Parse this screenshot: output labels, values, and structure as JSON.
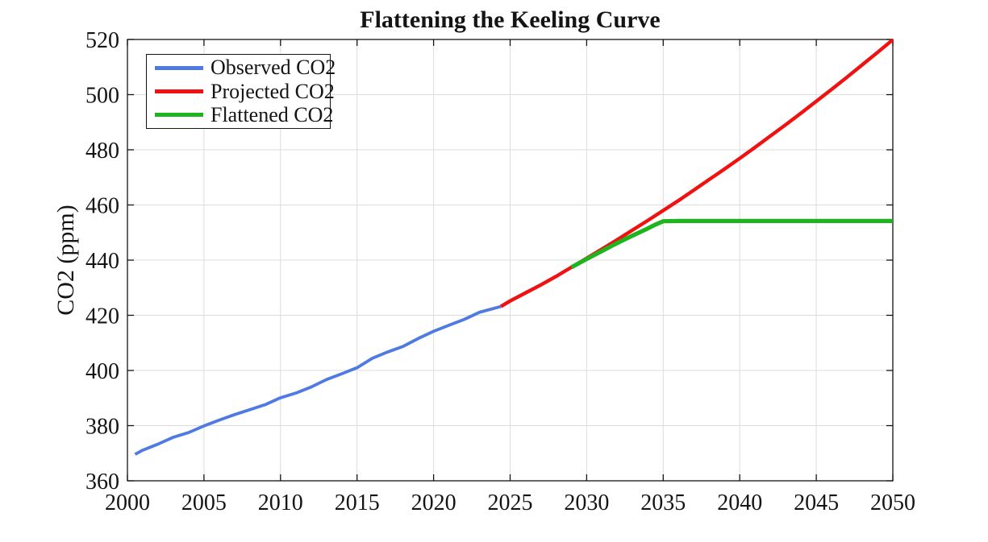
{
  "legend": {
    "items": [
      {
        "label": "Observed CO2"
      },
      {
        "label": "Projected CO2"
      },
      {
        "label": "Flattened CO2"
      }
    ]
  },
  "chart_data": {
    "type": "line",
    "title": "Flattening the Keeling Curve",
    "xlabel": "",
    "ylabel": "CO2 (ppm)",
    "xlim": [
      2000,
      2050
    ],
    "ylim": [
      360,
      520
    ],
    "xticks": [
      2000,
      2005,
      2010,
      2015,
      2020,
      2025,
      2030,
      2035,
      2040,
      2045,
      2050
    ],
    "yticks": [
      360,
      380,
      400,
      420,
      440,
      460,
      480,
      500,
      520
    ],
    "grid": true,
    "legend_position": "top-left",
    "colors": {
      "grid": "#dcdcdc",
      "axis": "#141414",
      "text": "#141414"
    },
    "series": [
      {
        "name": "Observed CO2",
        "color": "#4e7ae1",
        "width": 3.8,
        "x": [
          2000.5,
          2001,
          2002,
          2003,
          2004,
          2005,
          2006,
          2007,
          2008,
          2009,
          2010,
          2011,
          2012,
          2013,
          2014,
          2015,
          2016,
          2017,
          2018,
          2019,
          2020,
          2021,
          2022,
          2023,
          2024.4
        ],
        "y": [
          369.6,
          371.1,
          373.3,
          375.8,
          377.5,
          379.9,
          382.0,
          384.0,
          385.8,
          387.6,
          390.1,
          391.8,
          394.0,
          396.7,
          398.8,
          401.0,
          404.4,
          406.7,
          408.7,
          411.6,
          414.2,
          416.4,
          418.5,
          421.1,
          423.2
        ]
      },
      {
        "name": "Projected CO2",
        "color": "#f01111",
        "width": 4.4,
        "x": [
          2024.4,
          2025,
          2026,
          2027,
          2028,
          2029,
          2030,
          2031,
          2032,
          2033,
          2034,
          2035,
          2036,
          2037,
          2038,
          2039,
          2040,
          2041,
          2042,
          2043,
          2044,
          2045,
          2046,
          2047,
          2048,
          2049,
          2050
        ],
        "y": [
          423.2,
          425.2,
          428.1,
          431.0,
          434.1,
          437.4,
          440.7,
          444.0,
          447.4,
          450.9,
          454.4,
          458.0,
          461.6,
          465.4,
          469.2,
          473.0,
          476.9,
          480.9,
          485.0,
          489.1,
          493.3,
          497.6,
          501.9,
          506.3,
          510.8,
          515.3,
          519.9
        ]
      },
      {
        "name": "Flattened CO2",
        "color": "#1db41d",
        "width": 5.2,
        "x": [
          2029,
          2030,
          2031,
          2032,
          2033,
          2034,
          2034.5,
          2035,
          2036,
          2038,
          2040,
          2042,
          2044,
          2046,
          2048,
          2050
        ],
        "y": [
          437.4,
          440.4,
          443.3,
          446.2,
          448.9,
          451.5,
          452.9,
          454.1,
          454.2,
          454.2,
          454.2,
          454.2,
          454.2,
          454.2,
          454.2,
          454.2
        ]
      }
    ]
  }
}
